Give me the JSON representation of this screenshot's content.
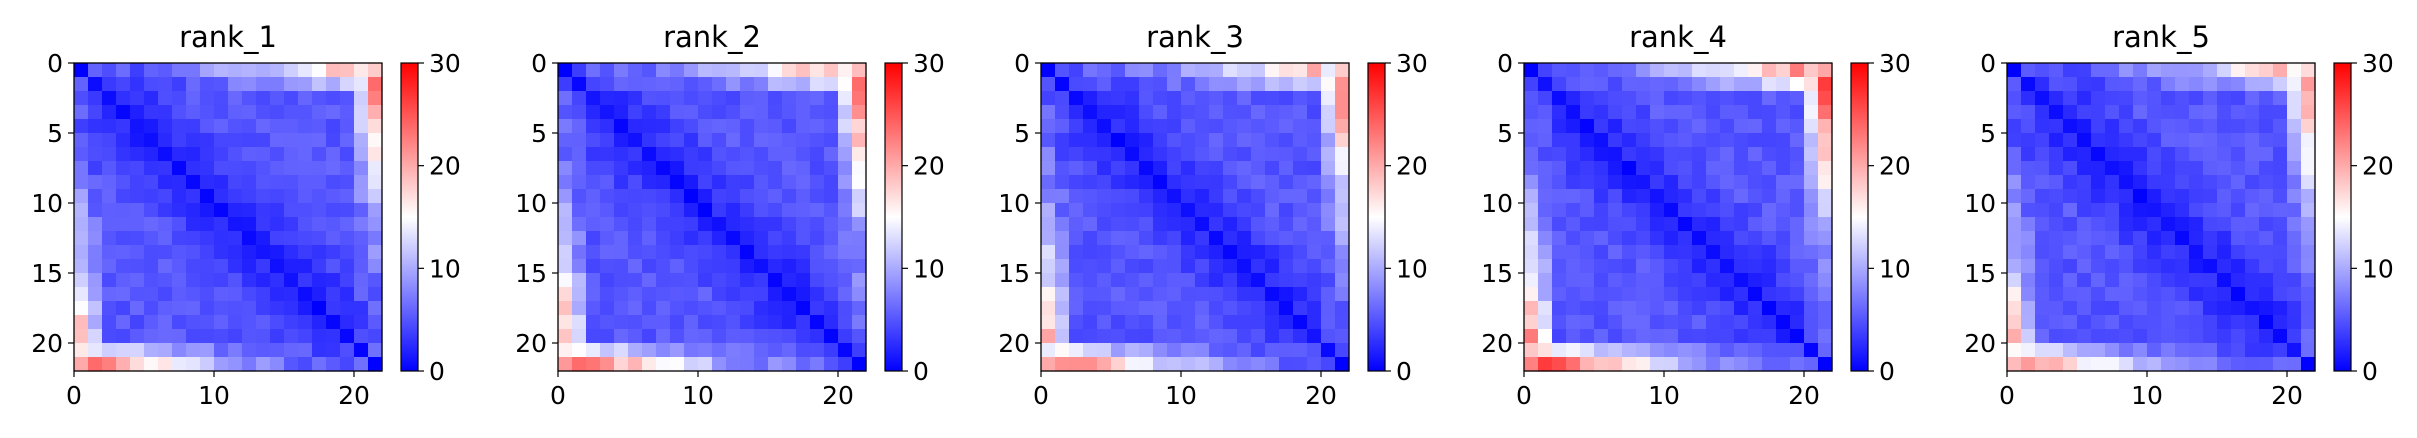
{
  "chart_data": {
    "type": "heatmap",
    "colormap": "bwr",
    "vmin": 0,
    "vmax": 30,
    "matrix_size": 22,
    "axis_ticks": [
      0,
      5,
      10,
      15,
      20
    ],
    "x_axis_ticks": [
      0,
      10,
      20
    ],
    "colorbar_ticks": [
      0,
      10,
      20,
      30
    ],
    "panels": [
      {
        "title": "rank_1",
        "edge_scale": 1.0,
        "seed": 3
      },
      {
        "title": "rank_2",
        "edge_scale": 1.05,
        "seed": 7
      },
      {
        "title": "rank_3",
        "edge_scale": 1.0,
        "seed": 11
      },
      {
        "title": "rank_4",
        "edge_scale": 1.12,
        "seed": 17
      },
      {
        "title": "rank_5",
        "edge_scale": 0.95,
        "seed": 23
      }
    ],
    "pattern": {
      "diagonal_value": 0,
      "interior_value": 4,
      "top_row_far_end_value": 22,
      "bottom_row_near_end_value": 25,
      "second_row_far_end_value": 14,
      "second_to_last_row_near_end_value": 15
    }
  }
}
